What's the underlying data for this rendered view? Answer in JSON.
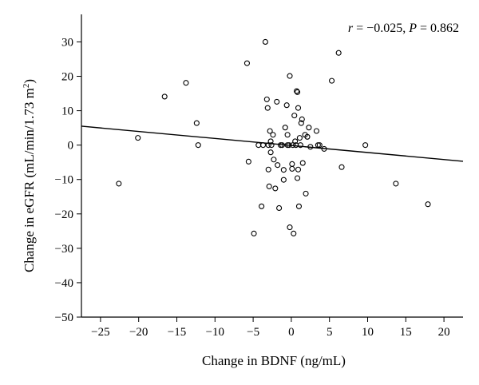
{
  "chart_data": {
    "type": "scatter",
    "xlabel": "Change in BDNF (ng/mL)",
    "ylabel_main": "Change in eGFR (mL/min/1.73 m",
    "ylabel_sup": "2",
    "ylabel_close": ")",
    "xlim": [
      -27.5,
      22.5
    ],
    "ylim": [
      -50,
      38
    ],
    "xticks": [
      -25,
      -20,
      -15,
      -10,
      -5,
      0,
      5,
      10,
      15,
      20
    ],
    "yticks": [
      30,
      20,
      10,
      0,
      -10,
      -20,
      -30,
      -40,
      -50
    ],
    "xtick_labels": [
      "−25",
      "−20",
      "−15",
      "−10",
      "−5",
      "0",
      "5",
      "10",
      "15",
      "20"
    ],
    "ytick_labels": [
      "30",
      "20",
      "10",
      "0",
      "−10",
      "−20",
      "−30",
      "−40",
      "−50"
    ],
    "annotation": {
      "r_sym": "r",
      "r_text": " = −0.025, ",
      "p_sym": "P",
      "p_text": " = 0.862"
    },
    "fit_line": {
      "x": [
        -27.5,
        22.5
      ],
      "y": [
        5.5,
        -4.7
      ]
    },
    "points": [
      [
        -22.6,
        -11.2
      ],
      [
        -20.1,
        2.1
      ],
      [
        -16.6,
        14.1
      ],
      [
        -13.8,
        18.1
      ],
      [
        -12.4,
        6.4
      ],
      [
        -12.2,
        0.0
      ],
      [
        -5.8,
        23.8
      ],
      [
        -5.6,
        -4.8
      ],
      [
        -4.9,
        -25.7
      ],
      [
        -4.3,
        0.0
      ],
      [
        -3.9,
        -17.8
      ],
      [
        -3.7,
        0.0
      ],
      [
        -3.4,
        30.0
      ],
      [
        -3.2,
        13.3
      ],
      [
        -3.1,
        10.8
      ],
      [
        -3.0,
        0.0
      ],
      [
        -3.0,
        -7.1
      ],
      [
        -2.9,
        -12.0
      ],
      [
        -2.8,
        4.1
      ],
      [
        -2.7,
        1.1
      ],
      [
        -2.7,
        -2.1
      ],
      [
        -2.6,
        0.0
      ],
      [
        -2.4,
        3.0
      ],
      [
        -2.3,
        -4.2
      ],
      [
        -2.1,
        -12.6
      ],
      [
        -1.9,
        12.6
      ],
      [
        -1.8,
        -5.8
      ],
      [
        -1.6,
        -18.3
      ],
      [
        -1.4,
        0.0
      ],
      [
        -1.2,
        0.0
      ],
      [
        -1.0,
        -10.1
      ],
      [
        -1.0,
        -7.2
      ],
      [
        -0.8,
        5.1
      ],
      [
        -0.6,
        11.6
      ],
      [
        -0.5,
        3.0
      ],
      [
        -0.5,
        0.0
      ],
      [
        -0.3,
        0.0
      ],
      [
        -0.2,
        20.1
      ],
      [
        -0.2,
        -23.9
      ],
      [
        0.1,
        -5.5
      ],
      [
        0.1,
        -6.9
      ],
      [
        0.2,
        0.0
      ],
      [
        0.3,
        -25.7
      ],
      [
        0.4,
        8.6
      ],
      [
        0.5,
        1.1
      ],
      [
        0.6,
        0.0
      ],
      [
        0.7,
        15.7
      ],
      [
        0.8,
        15.4
      ],
      [
        0.8,
        -9.6
      ],
      [
        0.9,
        10.8
      ],
      [
        0.9,
        -7.1
      ],
      [
        1.0,
        -17.8
      ],
      [
        1.1,
        2.1
      ],
      [
        1.2,
        0.0
      ],
      [
        1.3,
        6.4
      ],
      [
        1.4,
        7.5
      ],
      [
        1.5,
        -5.2
      ],
      [
        1.8,
        3.0
      ],
      [
        1.9,
        -14.1
      ],
      [
        2.1,
        2.4
      ],
      [
        2.3,
        5.1
      ],
      [
        2.5,
        -0.5
      ],
      [
        3.3,
        4.1
      ],
      [
        3.5,
        0.0
      ],
      [
        3.7,
        0.0
      ],
      [
        4.3,
        -1.1
      ],
      [
        5.3,
        18.7
      ],
      [
        6.2,
        26.8
      ],
      [
        6.6,
        -6.4
      ],
      [
        9.7,
        0.0
      ],
      [
        13.7,
        -11.2
      ],
      [
        17.9,
        -17.2
      ]
    ]
  }
}
